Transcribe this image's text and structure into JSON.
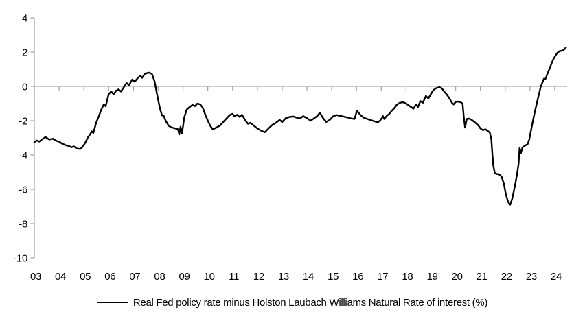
{
  "chart_data": {
    "type": "line",
    "title": "",
    "xlabel": "",
    "ylabel": "",
    "xlim": [
      2003,
      2024.5
    ],
    "ylim": [
      -10,
      4
    ],
    "y_ticks": [
      4,
      2,
      0,
      -2,
      -4,
      -6,
      -8,
      -10
    ],
    "y_tick_labels": [
      "4",
      "2",
      "0",
      "-2",
      "-4",
      "-6",
      "-8",
      "-10"
    ],
    "x_ticks": [
      2003,
      2004,
      2005,
      2006,
      2007,
      2008,
      2009,
      2010,
      2011,
      2012,
      2013,
      2014,
      2015,
      2016,
      2017,
      2018,
      2019,
      2020,
      2021,
      2022,
      2023,
      2024
    ],
    "x_tick_labels": [
      "03",
      "04",
      "05",
      "06",
      "07",
      "08",
      "09",
      "10",
      "11",
      "12",
      "13",
      "14",
      "15",
      "16",
      "17",
      "18",
      "19",
      "20",
      "21",
      "22",
      "23",
      "24"
    ],
    "grid": "zero-line-only",
    "legend_position": "bottom-center",
    "background": "#ffffff",
    "axis_color": "#a6a6a6",
    "line_color": "#000000",
    "line_width": 2.4,
    "series": [
      {
        "name": "Real Fed policy rate minus Holston Laubach Williams Natural Rate of interest (%)",
        "color": "#000000",
        "points": [
          [
            2003.0,
            -3.25
          ],
          [
            2003.1,
            -3.15
          ],
          [
            2003.2,
            -3.22
          ],
          [
            2003.3,
            -3.1
          ],
          [
            2003.45,
            -2.95
          ],
          [
            2003.6,
            -3.1
          ],
          [
            2003.75,
            -3.05
          ],
          [
            2003.9,
            -3.18
          ],
          [
            2004.0,
            -3.22
          ],
          [
            2004.1,
            -3.32
          ],
          [
            2004.25,
            -3.42
          ],
          [
            2004.4,
            -3.48
          ],
          [
            2004.5,
            -3.55
          ],
          [
            2004.6,
            -3.5
          ],
          [
            2004.7,
            -3.62
          ],
          [
            2004.85,
            -3.65
          ],
          [
            2004.95,
            -3.52
          ],
          [
            2005.05,
            -3.3
          ],
          [
            2005.15,
            -3.0
          ],
          [
            2005.25,
            -2.8
          ],
          [
            2005.32,
            -2.62
          ],
          [
            2005.38,
            -2.72
          ],
          [
            2005.5,
            -2.1
          ],
          [
            2005.6,
            -1.75
          ],
          [
            2005.7,
            -1.35
          ],
          [
            2005.8,
            -1.05
          ],
          [
            2005.88,
            -1.15
          ],
          [
            2006.0,
            -0.45
          ],
          [
            2006.1,
            -0.3
          ],
          [
            2006.2,
            -0.45
          ],
          [
            2006.3,
            -0.25
          ],
          [
            2006.4,
            -0.17
          ],
          [
            2006.5,
            -0.3
          ],
          [
            2006.62,
            -0.02
          ],
          [
            2006.72,
            0.2
          ],
          [
            2006.82,
            0.07
          ],
          [
            2006.95,
            0.4
          ],
          [
            2007.05,
            0.27
          ],
          [
            2007.18,
            0.5
          ],
          [
            2007.28,
            0.62
          ],
          [
            2007.35,
            0.5
          ],
          [
            2007.45,
            0.72
          ],
          [
            2007.55,
            0.78
          ],
          [
            2007.65,
            0.8
          ],
          [
            2007.75,
            0.72
          ],
          [
            2007.85,
            0.3
          ],
          [
            2007.95,
            -0.45
          ],
          [
            2008.02,
            -0.95
          ],
          [
            2008.08,
            -1.35
          ],
          [
            2008.15,
            -1.68
          ],
          [
            2008.22,
            -1.72
          ],
          [
            2008.3,
            -2.0
          ],
          [
            2008.42,
            -2.3
          ],
          [
            2008.55,
            -2.4
          ],
          [
            2008.7,
            -2.45
          ],
          [
            2008.8,
            -2.5
          ],
          [
            2008.85,
            -2.8
          ],
          [
            2008.9,
            -2.35
          ],
          [
            2008.96,
            -2.73
          ],
          [
            2009.05,
            -1.8
          ],
          [
            2009.15,
            -1.35
          ],
          [
            2009.25,
            -1.22
          ],
          [
            2009.38,
            -1.08
          ],
          [
            2009.48,
            -1.15
          ],
          [
            2009.58,
            -1.0
          ],
          [
            2009.7,
            -1.05
          ],
          [
            2009.8,
            -1.25
          ],
          [
            2009.9,
            -1.65
          ],
          [
            2010.0,
            -2.0
          ],
          [
            2010.1,
            -2.3
          ],
          [
            2010.2,
            -2.5
          ],
          [
            2010.35,
            -2.4
          ],
          [
            2010.5,
            -2.27
          ],
          [
            2010.62,
            -2.08
          ],
          [
            2010.75,
            -1.88
          ],
          [
            2010.88,
            -1.68
          ],
          [
            2011.0,
            -1.6
          ],
          [
            2011.08,
            -1.75
          ],
          [
            2011.18,
            -1.65
          ],
          [
            2011.28,
            -1.78
          ],
          [
            2011.38,
            -1.65
          ],
          [
            2011.5,
            -1.95
          ],
          [
            2011.62,
            -2.18
          ],
          [
            2011.72,
            -2.12
          ],
          [
            2011.85,
            -2.28
          ],
          [
            2012.0,
            -2.45
          ],
          [
            2012.15,
            -2.58
          ],
          [
            2012.3,
            -2.67
          ],
          [
            2012.45,
            -2.45
          ],
          [
            2012.6,
            -2.25
          ],
          [
            2012.75,
            -2.12
          ],
          [
            2012.9,
            -1.95
          ],
          [
            2013.0,
            -2.08
          ],
          [
            2013.15,
            -1.85
          ],
          [
            2013.3,
            -1.78
          ],
          [
            2013.45,
            -1.75
          ],
          [
            2013.6,
            -1.83
          ],
          [
            2013.72,
            -1.87
          ],
          [
            2013.85,
            -1.73
          ],
          [
            2014.0,
            -1.85
          ],
          [
            2014.15,
            -2.0
          ],
          [
            2014.3,
            -1.85
          ],
          [
            2014.42,
            -1.72
          ],
          [
            2014.52,
            -1.53
          ],
          [
            2014.65,
            -1.85
          ],
          [
            2014.78,
            -2.07
          ],
          [
            2014.92,
            -1.95
          ],
          [
            2015.05,
            -1.75
          ],
          [
            2015.2,
            -1.67
          ],
          [
            2015.4,
            -1.73
          ],
          [
            2015.6,
            -1.8
          ],
          [
            2015.8,
            -1.87
          ],
          [
            2015.92,
            -1.9
          ],
          [
            2016.02,
            -1.42
          ],
          [
            2016.15,
            -1.65
          ],
          [
            2016.3,
            -1.83
          ],
          [
            2016.5,
            -1.93
          ],
          [
            2016.65,
            -2.0
          ],
          [
            2016.85,
            -2.1
          ],
          [
            2016.95,
            -2.0
          ],
          [
            2017.02,
            -1.85
          ],
          [
            2017.06,
            -1.72
          ],
          [
            2017.12,
            -1.9
          ],
          [
            2017.22,
            -1.72
          ],
          [
            2017.32,
            -1.6
          ],
          [
            2017.42,
            -1.42
          ],
          [
            2017.52,
            -1.28
          ],
          [
            2017.62,
            -1.08
          ],
          [
            2017.75,
            -0.95
          ],
          [
            2017.88,
            -0.92
          ],
          [
            2018.0,
            -1.0
          ],
          [
            2018.1,
            -1.1
          ],
          [
            2018.2,
            -1.2
          ],
          [
            2018.3,
            -1.3
          ],
          [
            2018.4,
            -1.05
          ],
          [
            2018.48,
            -1.2
          ],
          [
            2018.58,
            -0.85
          ],
          [
            2018.68,
            -0.95
          ],
          [
            2018.8,
            -0.55
          ],
          [
            2018.9,
            -0.7
          ],
          [
            2019.0,
            -0.45
          ],
          [
            2019.1,
            -0.22
          ],
          [
            2019.22,
            -0.1
          ],
          [
            2019.35,
            -0.05
          ],
          [
            2019.45,
            -0.12
          ],
          [
            2019.55,
            -0.32
          ],
          [
            2019.65,
            -0.48
          ],
          [
            2019.75,
            -0.7
          ],
          [
            2019.85,
            -0.95
          ],
          [
            2019.92,
            -1.05
          ],
          [
            2020.0,
            -0.9
          ],
          [
            2020.1,
            -0.88
          ],
          [
            2020.2,
            -0.92
          ],
          [
            2020.28,
            -1.0
          ],
          [
            2020.33,
            -1.8
          ],
          [
            2020.38,
            -2.4
          ],
          [
            2020.45,
            -1.9
          ],
          [
            2020.55,
            -1.88
          ],
          [
            2020.65,
            -1.95
          ],
          [
            2020.78,
            -2.1
          ],
          [
            2020.9,
            -2.25
          ],
          [
            2021.0,
            -2.45
          ],
          [
            2021.1,
            -2.55
          ],
          [
            2021.2,
            -2.5
          ],
          [
            2021.3,
            -2.6
          ],
          [
            2021.38,
            -2.7
          ],
          [
            2021.44,
            -3.1
          ],
          [
            2021.48,
            -3.9
          ],
          [
            2021.52,
            -4.6
          ],
          [
            2021.58,
            -5.05
          ],
          [
            2021.65,
            -5.1
          ],
          [
            2021.75,
            -5.12
          ],
          [
            2021.85,
            -5.25
          ],
          [
            2021.95,
            -5.7
          ],
          [
            2022.02,
            -6.25
          ],
          [
            2022.1,
            -6.65
          ],
          [
            2022.16,
            -6.85
          ],
          [
            2022.2,
            -6.9
          ],
          [
            2022.28,
            -6.55
          ],
          [
            2022.35,
            -6.1
          ],
          [
            2022.42,
            -5.6
          ],
          [
            2022.48,
            -5.1
          ],
          [
            2022.54,
            -4.5
          ],
          [
            2022.58,
            -3.6
          ],
          [
            2022.63,
            -3.9
          ],
          [
            2022.7,
            -3.55
          ],
          [
            2022.8,
            -3.45
          ],
          [
            2022.9,
            -3.38
          ],
          [
            2022.97,
            -3.1
          ],
          [
            2023.05,
            -2.5
          ],
          [
            2023.12,
            -2.0
          ],
          [
            2023.2,
            -1.45
          ],
          [
            2023.28,
            -0.95
          ],
          [
            2023.36,
            -0.45
          ],
          [
            2023.44,
            0.0
          ],
          [
            2023.5,
            0.22
          ],
          [
            2023.56,
            0.45
          ],
          [
            2023.62,
            0.42
          ],
          [
            2023.7,
            0.72
          ],
          [
            2023.78,
            1.0
          ],
          [
            2023.86,
            1.3
          ],
          [
            2023.94,
            1.58
          ],
          [
            2024.02,
            1.78
          ],
          [
            2024.1,
            1.95
          ],
          [
            2024.18,
            2.05
          ],
          [
            2024.28,
            2.08
          ],
          [
            2024.36,
            2.12
          ],
          [
            2024.45,
            2.27
          ]
        ]
      }
    ]
  },
  "legend": {
    "label": "Real Fed policy rate minus Holston Laubach Williams Natural Rate of interest (%)"
  }
}
